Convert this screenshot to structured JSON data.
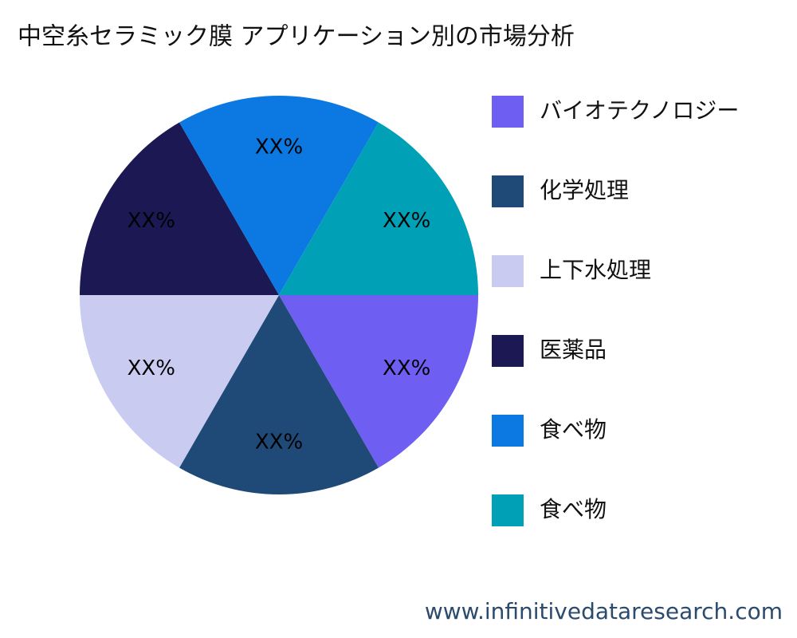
{
  "chart_data": {
    "type": "pie",
    "title": "中空糸セラミック膜 アプリケーション別の市場分析",
    "categories": [
      "バイオテクノロジー",
      "化学処理",
      "上下水処理",
      "医薬品",
      "食べ物",
      "食べ物"
    ],
    "values": [
      16.67,
      16.67,
      16.67,
      16.67,
      16.67,
      16.67
    ],
    "value_labels": [
      "XX%",
      "XX%",
      "XX%",
      "XX%",
      "XX%",
      "XX%"
    ],
    "colors": [
      "#6e5ff2",
      "#1f4a78",
      "#cacbf0",
      "#1c1853",
      "#0c79e2",
      "#00a0b7"
    ],
    "legend": "right"
  },
  "footer": {
    "source": "www.infinitivedataresearch.com"
  }
}
